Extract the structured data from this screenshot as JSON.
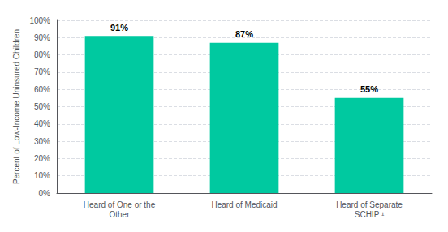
{
  "chart_data": {
    "type": "bar",
    "ylabel": "Percent of Low-Income Uninsured Children",
    "categories": [
      "Heard of One or the\nOther",
      "Heard of Medicaid",
      "Heard of Separate\nSCHIP ¹"
    ],
    "values": [
      91,
      87,
      55
    ],
    "value_labels": [
      "91%",
      "87%",
      "55%"
    ],
    "color": "#00C9A0",
    "ylim": [
      0,
      100
    ],
    "yticks": [
      {
        "value": 0,
        "label": "0%"
      },
      {
        "value": 10,
        "label": "10%"
      },
      {
        "value": 20,
        "label": "20%"
      },
      {
        "value": 30,
        "label": "30%"
      },
      {
        "value": 40,
        "label": "40%"
      },
      {
        "value": 50,
        "label": "50%"
      },
      {
        "value": 60,
        "label": "60%"
      },
      {
        "value": 70,
        "label": "70%"
      },
      {
        "value": 80,
        "label": "80%"
      },
      {
        "value": 90,
        "label": "90%"
      },
      {
        "value": 100,
        "label": "100%"
      }
    ],
    "grid": true,
    "data_labels": true
  }
}
